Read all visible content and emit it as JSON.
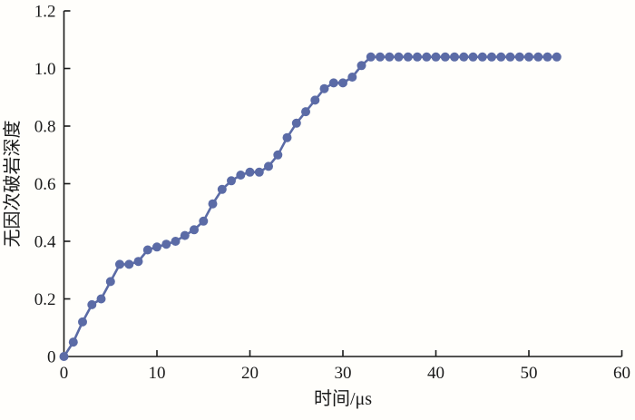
{
  "figure": {
    "background": "#fffefb",
    "axis_color": "#1a1a1a",
    "text_color": "#1a1a1a"
  },
  "chart_data": {
    "type": "line",
    "title": "",
    "xlabel": "时间/μs",
    "ylabel": "无因次破岩深度",
    "xlim": [
      0,
      60
    ],
    "ylim": [
      0,
      1.2
    ],
    "x_ticks": [
      0,
      10,
      20,
      30,
      40,
      50,
      60
    ],
    "x_tick_labels": [
      "0",
      "10",
      "20",
      "30",
      "40",
      "50",
      "60"
    ],
    "y_ticks": [
      0,
      0.2,
      0.4,
      0.6,
      0.8,
      1.0,
      1.2
    ],
    "y_tick_labels": [
      "0",
      "0.2",
      "0.4",
      "0.6",
      "0.8",
      "1.0",
      "1.2"
    ],
    "grid": false,
    "legend": "none",
    "marker": "circle",
    "series": [
      {
        "name": "无因次破岩深度",
        "color": "#5b6ba6",
        "x": [
          0,
          1,
          2,
          3,
          4,
          5,
          6,
          7,
          8,
          9,
          10,
          11,
          12,
          13,
          14,
          15,
          16,
          17,
          18,
          19,
          20,
          21,
          22,
          23,
          24,
          25,
          26,
          27,
          28,
          29,
          30,
          31,
          32,
          33,
          34,
          35,
          36,
          37,
          38,
          39,
          40,
          41,
          42,
          43,
          44,
          45,
          46,
          47,
          48,
          49,
          50,
          51,
          52,
          53
        ],
        "y": [
          0.0,
          0.05,
          0.12,
          0.18,
          0.2,
          0.26,
          0.32,
          0.32,
          0.33,
          0.37,
          0.38,
          0.39,
          0.4,
          0.42,
          0.44,
          0.47,
          0.53,
          0.58,
          0.61,
          0.63,
          0.64,
          0.64,
          0.66,
          0.7,
          0.76,
          0.81,
          0.85,
          0.89,
          0.93,
          0.95,
          0.95,
          0.97,
          1.01,
          1.04,
          1.04,
          1.04,
          1.04,
          1.04,
          1.04,
          1.04,
          1.04,
          1.04,
          1.04,
          1.04,
          1.04,
          1.04,
          1.04,
          1.04,
          1.04,
          1.04,
          1.04,
          1.04,
          1.04,
          1.04
        ]
      }
    ]
  }
}
